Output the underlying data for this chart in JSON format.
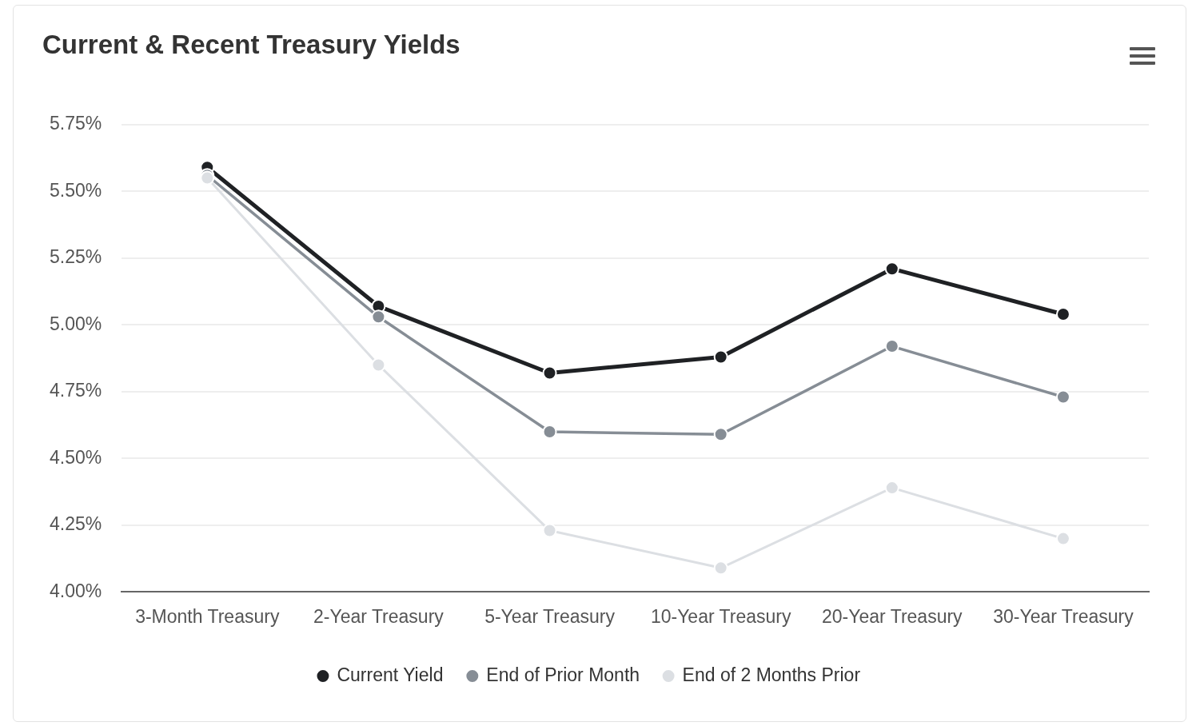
{
  "chart_data": {
    "type": "line",
    "title": "Current & Recent Treasury Yields",
    "categories": [
      "3-Month Treasury",
      "2-Year Treasury",
      "5-Year Treasury",
      "10-Year Treasury",
      "20-Year Treasury",
      "30-Year Treasury"
    ],
    "series": [
      {
        "name": "Current Yield",
        "color": "#1f2124",
        "values": [
          5.59,
          5.07,
          4.82,
          4.88,
          5.21,
          5.04
        ]
      },
      {
        "name": "End of Prior Month",
        "color": "#868d95",
        "values": [
          5.56,
          5.03,
          4.6,
          4.59,
          4.92,
          4.73
        ]
      },
      {
        "name": "End of 2 Months Prior",
        "color": "#dcdfe3",
        "values": [
          5.55,
          4.85,
          4.23,
          4.09,
          4.39,
          4.2
        ]
      }
    ],
    "ylim": [
      4.0,
      5.75
    ],
    "yticks": [
      {
        "value": 4.0,
        "label": "4.00%"
      },
      {
        "value": 4.25,
        "label": "4.25%"
      },
      {
        "value": 4.5,
        "label": "4.50%"
      },
      {
        "value": 4.75,
        "label": "4.75%"
      },
      {
        "value": 5.0,
        "label": "5.00%"
      },
      {
        "value": 5.25,
        "label": "5.25%"
      },
      {
        "value": 5.5,
        "label": "5.50%"
      },
      {
        "value": 5.75,
        "label": "5.75%"
      }
    ],
    "grid": "y",
    "legend": "bottom",
    "marker": "circle",
    "line_style": "solid"
  }
}
